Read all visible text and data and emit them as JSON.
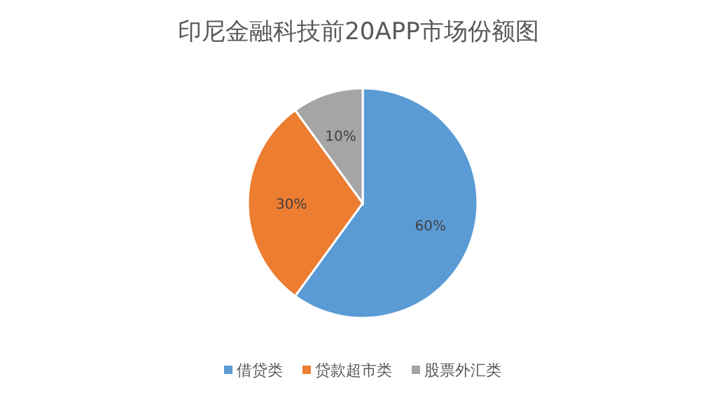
{
  "chart_data": {
    "type": "pie",
    "title": "印尼金融科技前20APP市场份额图",
    "categories": [
      "借贷类",
      "贷款超市类",
      "股票外汇类"
    ],
    "values": [
      60,
      30,
      10
    ],
    "colors": [
      "#5b9bd5",
      "#ed7d31",
      "#a5a5a5"
    ],
    "value_labels": [
      "60%",
      "30%",
      "10%"
    ],
    "legend": "bottom"
  }
}
